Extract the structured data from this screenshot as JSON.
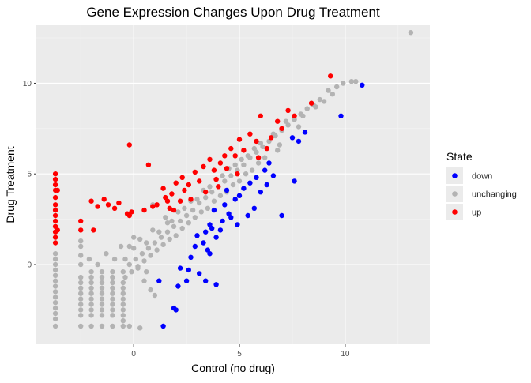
{
  "chart_data": {
    "type": "scatter",
    "title": "Gene Expression Changes Upon Drug Treatment",
    "xlabel": "Control (no drug)",
    "ylabel": "Drug Treatment",
    "xlim": [
      -4.6,
      14.0
    ],
    "ylim": [
      -4.4,
      13.2
    ],
    "x_ticks": [
      0,
      5,
      10
    ],
    "y_ticks": [
      0,
      5,
      10
    ],
    "grid": true,
    "legend": {
      "title": "State",
      "position": "right",
      "entries": [
        {
          "label": "down",
          "color": "#0000ff"
        },
        {
          "label": "unchanging",
          "color": "#b3b3b3"
        },
        {
          "label": "up",
          "color": "#ff0000"
        }
      ]
    },
    "colors": {
      "panel_background": "#ebebeb",
      "grid_major": "#ffffff",
      "down": "#0000ff",
      "unchanging": "#b3b3b3",
      "up": "#ff0000"
    },
    "series": [
      {
        "name": "unchanging",
        "points": [
          [
            13.1,
            12.8
          ],
          [
            10.5,
            10.1
          ],
          [
            10.3,
            10.1
          ],
          [
            9.6,
            9.8
          ],
          [
            9.2,
            9.6
          ],
          [
            8.8,
            9.1
          ],
          [
            8.5,
            8.8
          ],
          [
            8.2,
            8.6
          ],
          [
            7.9,
            8.3
          ],
          [
            7.6,
            8.0
          ],
          [
            7.3,
            7.7
          ],
          [
            7.0,
            7.4
          ],
          [
            6.7,
            7.1
          ],
          [
            6.4,
            6.8
          ],
          [
            6.1,
            6.5
          ],
          [
            5.8,
            6.2
          ],
          [
            5.5,
            5.9
          ],
          [
            5.2,
            5.5
          ],
          [
            4.9,
            5.2
          ],
          [
            4.6,
            4.9
          ],
          [
            4.3,
            4.6
          ],
          [
            4.0,
            4.3
          ],
          [
            3.7,
            4.0
          ],
          [
            3.4,
            3.7
          ],
          [
            3.1,
            3.4
          ],
          [
            2.8,
            3.0
          ],
          [
            2.5,
            2.7
          ],
          [
            2.2,
            2.4
          ],
          [
            1.9,
            2.1
          ],
          [
            1.6,
            1.8
          ],
          [
            1.3,
            1.5
          ],
          [
            1.0,
            1.2
          ],
          [
            0.7,
            0.9
          ],
          [
            0.4,
            0.6
          ],
          [
            0.1,
            0.3
          ],
          [
            -0.2,
            0.0
          ],
          [
            6.8,
            6.3
          ],
          [
            6.2,
            5.9
          ],
          [
            5.6,
            5.2
          ],
          [
            5.0,
            4.6
          ],
          [
            4.4,
            4.0
          ],
          [
            3.8,
            3.5
          ],
          [
            3.2,
            2.9
          ],
          [
            2.6,
            2.3
          ],
          [
            2.0,
            1.6
          ],
          [
            1.4,
            1.1
          ],
          [
            0.8,
            0.5
          ],
          [
            0.2,
            -0.1
          ],
          [
            7.2,
            7.9
          ],
          [
            6.6,
            7.2
          ],
          [
            6.0,
            6.7
          ],
          [
            5.4,
            6.0
          ],
          [
            4.8,
            5.5
          ],
          [
            4.2,
            4.9
          ],
          [
            3.6,
            4.3
          ],
          [
            3.0,
            3.6
          ],
          [
            2.4,
            3.1
          ],
          [
            1.8,
            2.4
          ],
          [
            1.2,
            1.8
          ],
          [
            0.6,
            1.2
          ],
          [
            8.0,
            8.2
          ],
          [
            8.6,
            8.7
          ],
          [
            9.0,
            9.0
          ],
          [
            9.4,
            9.4
          ],
          [
            9.9,
            10.0
          ],
          [
            7.8,
            7.6
          ],
          [
            6.9,
            6.6
          ],
          [
            5.9,
            5.6
          ],
          [
            5.3,
            5.0
          ],
          [
            4.7,
            4.4
          ],
          [
            4.1,
            3.8
          ],
          [
            3.5,
            3.1
          ],
          [
            2.9,
            2.6
          ],
          [
            2.3,
            2.0
          ],
          [
            1.7,
            1.4
          ],
          [
            1.1,
            0.8
          ],
          [
            0.5,
            0.2
          ],
          [
            -0.1,
            -0.4
          ],
          [
            1.6,
            2.3
          ],
          [
            2.1,
            2.9
          ],
          [
            2.7,
            3.5
          ],
          [
            3.3,
            4.1
          ],
          [
            3.9,
            4.7
          ],
          [
            4.5,
            5.3
          ],
          [
            5.1,
            5.8
          ],
          [
            5.7,
            6.4
          ],
          [
            0.0,
            0.9
          ],
          [
            0.3,
            1.4
          ],
          [
            0.9,
            1.9
          ],
          [
            1.5,
            2.6
          ],
          [
            -0.5,
            -0.4
          ],
          [
            -0.4,
            -0.7
          ],
          [
            -0.5,
            -1.0
          ],
          [
            -0.5,
            -1.3
          ],
          [
            -0.5,
            -1.6
          ],
          [
            -0.5,
            -1.9
          ],
          [
            -0.5,
            -2.2
          ],
          [
            -0.5,
            -2.5
          ],
          [
            -0.5,
            -2.8
          ],
          [
            -0.5,
            -3.1
          ],
          [
            -0.5,
            -3.4
          ],
          [
            -1.0,
            -0.4
          ],
          [
            -1.0,
            -0.7
          ],
          [
            -1.0,
            -1.0
          ],
          [
            -1.0,
            -1.3
          ],
          [
            -1.0,
            -1.6
          ],
          [
            -1.0,
            -1.9
          ],
          [
            -1.0,
            -2.2
          ],
          [
            -1.0,
            -2.5
          ],
          [
            -1.0,
            -2.8
          ],
          [
            -1.0,
            -3.4
          ],
          [
            -1.5,
            -0.4
          ],
          [
            -1.5,
            -0.7
          ],
          [
            -1.5,
            -1.0
          ],
          [
            -1.5,
            -1.3
          ],
          [
            -1.5,
            -1.6
          ],
          [
            -1.5,
            -1.9
          ],
          [
            -1.5,
            -2.2
          ],
          [
            -1.5,
            -2.5
          ],
          [
            -1.5,
            -2.8
          ],
          [
            -1.5,
            -3.4
          ],
          [
            -2.0,
            -0.4
          ],
          [
            -2.0,
            -0.7
          ],
          [
            -2.0,
            -1.0
          ],
          [
            -2.0,
            -1.3
          ],
          [
            -2.0,
            -1.6
          ],
          [
            -2.0,
            -1.9
          ],
          [
            -2.0,
            -2.2
          ],
          [
            -2.0,
            -2.5
          ],
          [
            -2.0,
            -2.8
          ],
          [
            -2.0,
            -3.4
          ],
          [
            -2.5,
            -0.7
          ],
          [
            -2.5,
            -1.0
          ],
          [
            -2.5,
            -1.3
          ],
          [
            -2.5,
            -1.6
          ],
          [
            -2.5,
            -1.9
          ],
          [
            -2.5,
            -2.2
          ],
          [
            -2.5,
            -2.5
          ],
          [
            -2.5,
            -2.8
          ],
          [
            -2.5,
            -3.4
          ],
          [
            -3.7,
            0.6
          ],
          [
            -3.7,
            0.3
          ],
          [
            -3.7,
            0.0
          ],
          [
            -3.7,
            -0.3
          ],
          [
            -3.7,
            -0.6
          ],
          [
            -3.7,
            -0.9
          ],
          [
            -3.7,
            -1.2
          ],
          [
            -3.7,
            -1.5
          ],
          [
            -3.7,
            -1.8
          ],
          [
            -3.7,
            -2.1
          ],
          [
            -3.7,
            -2.4
          ],
          [
            -3.7,
            -2.7
          ],
          [
            -3.7,
            -3.0
          ],
          [
            -3.7,
            -3.4
          ],
          [
            -0.2,
            -3.4
          ],
          [
            0.3,
            -3.5
          ],
          [
            -0.4,
            0.3
          ],
          [
            -0.9,
            0.3
          ],
          [
            -1.3,
            0.6
          ],
          [
            -0.6,
            1.0
          ],
          [
            -0.2,
            1.0
          ],
          [
            0.0,
            1.5
          ],
          [
            -2.5,
            1.3
          ],
          [
            -2.5,
            1.0
          ],
          [
            -2.5,
            0.5
          ],
          [
            -2.5,
            0.0
          ],
          [
            -1.7,
            0.0
          ],
          [
            -2.1,
            0.3
          ],
          [
            0.5,
            -0.9
          ],
          [
            0.8,
            -1.4
          ],
          [
            1.0,
            -1.7
          ],
          [
            0.6,
            -0.4
          ],
          [
            0.2,
            -0.2
          ],
          [
            0.9,
            3.3
          ]
        ]
      },
      {
        "name": "down",
        "points": [
          [
            10.8,
            9.9
          ],
          [
            9.8,
            8.2
          ],
          [
            7.5,
            7.0
          ],
          [
            8.1,
            7.3
          ],
          [
            7.8,
            6.8
          ],
          [
            6.4,
            5.6
          ],
          [
            6.2,
            5.2
          ],
          [
            6.6,
            4.9
          ],
          [
            7.6,
            4.6
          ],
          [
            5.8,
            4.8
          ],
          [
            5.5,
            4.5
          ],
          [
            5.2,
            4.2
          ],
          [
            5.0,
            3.8
          ],
          [
            6.0,
            4.0
          ],
          [
            4.8,
            3.6
          ],
          [
            4.3,
            3.3
          ],
          [
            4.5,
            2.8
          ],
          [
            3.8,
            3.0
          ],
          [
            4.2,
            2.4
          ],
          [
            4.6,
            2.6
          ],
          [
            4.9,
            2.2
          ],
          [
            5.4,
            2.7
          ],
          [
            3.6,
            2.2
          ],
          [
            3.4,
            1.8
          ],
          [
            3.9,
            1.5
          ],
          [
            3.3,
            1.2
          ],
          [
            3.5,
            0.8
          ],
          [
            2.9,
            1.0
          ],
          [
            3.6,
            0.6
          ],
          [
            2.7,
            0.4
          ],
          [
            2.6,
            -0.3
          ],
          [
            3.1,
            -0.5
          ],
          [
            2.5,
            -0.9
          ],
          [
            3.4,
            -0.9
          ],
          [
            2.1,
            -1.2
          ],
          [
            3.9,
            -1.1
          ],
          [
            1.9,
            -2.4
          ],
          [
            2.0,
            -2.5
          ],
          [
            1.4,
            -3.4
          ],
          [
            7.0,
            2.7
          ],
          [
            5.7,
            3.1
          ],
          [
            6.3,
            4.4
          ],
          [
            4.1,
            1.9
          ],
          [
            3.0,
            1.6
          ],
          [
            4.4,
            4.1
          ],
          [
            3.7,
            2.0
          ],
          [
            2.2,
            -0.2
          ],
          [
            1.2,
            -0.9
          ]
        ]
      },
      {
        "name": "up",
        "points": [
          [
            9.3,
            10.4
          ],
          [
            8.4,
            8.9
          ],
          [
            7.3,
            8.5
          ],
          [
            7.6,
            8.2
          ],
          [
            6.0,
            8.2
          ],
          [
            7.0,
            7.5
          ],
          [
            5.5,
            7.2
          ],
          [
            6.5,
            7.0
          ],
          [
            5.0,
            6.9
          ],
          [
            4.6,
            6.4
          ],
          [
            5.2,
            6.3
          ],
          [
            4.8,
            6.0
          ],
          [
            4.3,
            6.0
          ],
          [
            3.6,
            5.8
          ],
          [
            4.1,
            5.6
          ],
          [
            3.3,
            5.4
          ],
          [
            4.4,
            5.3
          ],
          [
            3.8,
            5.2
          ],
          [
            2.9,
            5.1
          ],
          [
            3.1,
            4.6
          ],
          [
            3.9,
            4.7
          ],
          [
            2.3,
            4.8
          ],
          [
            2.6,
            4.4
          ],
          [
            2.0,
            4.5
          ],
          [
            2.4,
            4.1
          ],
          [
            3.4,
            4.0
          ],
          [
            1.8,
            3.9
          ],
          [
            2.7,
            3.6
          ],
          [
            1.4,
            4.2
          ],
          [
            1.5,
            3.7
          ],
          [
            1.7,
            3.1
          ],
          [
            1.9,
            3.0
          ],
          [
            2.2,
            3.5
          ],
          [
            1.1,
            3.3
          ],
          [
            1.6,
            3.5
          ],
          [
            0.7,
            5.5
          ],
          [
            0.9,
            3.2
          ],
          [
            0.5,
            3.0
          ],
          [
            -0.2,
            6.6
          ],
          [
            -1.4,
            3.6
          ],
          [
            -1.2,
            3.3
          ],
          [
            -0.7,
            3.4
          ],
          [
            -0.3,
            2.8
          ],
          [
            -0.1,
            2.9
          ],
          [
            -0.2,
            2.7
          ],
          [
            -1.7,
            3.2
          ],
          [
            -2.0,
            3.5
          ],
          [
            -2.5,
            2.4
          ],
          [
            -1.9,
            1.9
          ],
          [
            -2.5,
            1.9
          ],
          [
            -0.9,
            3.1
          ],
          [
            -3.7,
            5.0
          ],
          [
            -3.7,
            4.7
          ],
          [
            -3.7,
            4.4
          ],
          [
            -3.7,
            4.1
          ],
          [
            -3.7,
            3.7
          ],
          [
            -3.7,
            3.3
          ],
          [
            -3.7,
            3.0
          ],
          [
            -3.7,
            2.7
          ],
          [
            -3.7,
            2.4
          ],
          [
            -3.7,
            2.1
          ],
          [
            -3.7,
            1.8
          ],
          [
            -3.7,
            1.5
          ],
          [
            -3.7,
            1.2
          ],
          [
            -3.6,
            4.1
          ],
          [
            -3.6,
            1.9
          ],
          [
            4.0,
            4.3
          ],
          [
            5.8,
            6.8
          ],
          [
            6.8,
            7.9
          ],
          [
            6.3,
            6.4
          ],
          [
            5.9,
            5.9
          ],
          [
            4.9,
            5.0
          ]
        ]
      }
    ]
  }
}
